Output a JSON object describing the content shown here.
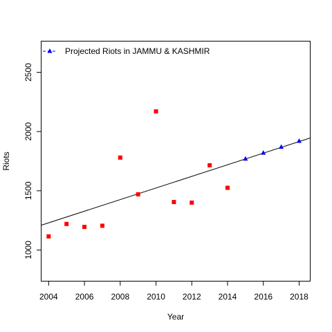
{
  "chart_data": {
    "type": "scatter",
    "xlabel": "Year",
    "ylabel": "Riots",
    "xlim": [
      2003.6,
      2018.6
    ],
    "ylim": [
      740,
      2760
    ],
    "x_ticks": [
      2004,
      2006,
      2008,
      2010,
      2012,
      2014,
      2016,
      2018
    ],
    "y_ticks": [
      1000,
      1500,
      2000,
      2500
    ],
    "grid": false,
    "legend": {
      "position": "top-left",
      "entries": [
        {
          "label": "Projected  Riots  in  JAMMU & KASHMIR",
          "marker": "triangle",
          "line": "dashed"
        }
      ]
    },
    "series": [
      {
        "role": "observed",
        "marker": "square",
        "color": "#ff0000",
        "points": [
          {
            "x": 2004,
            "y": 1115
          },
          {
            "x": 2005,
            "y": 1220
          },
          {
            "x": 2006,
            "y": 1195
          },
          {
            "x": 2007,
            "y": 1205
          },
          {
            "x": 2008,
            "y": 1780
          },
          {
            "x": 2009,
            "y": 1470
          },
          {
            "x": 2010,
            "y": 2170
          },
          {
            "x": 2011,
            "y": 1405
          },
          {
            "x": 2012,
            "y": 1400
          },
          {
            "x": 2013,
            "y": 1715
          },
          {
            "x": 2014,
            "y": 1525
          }
        ]
      },
      {
        "role": "projected",
        "name": "Projected  Riots  in  JAMMU & KASHMIR",
        "marker": "triangle",
        "color": "#0000ff",
        "points": [
          {
            "x": 2015,
            "y": 1772
          },
          {
            "x": 2016,
            "y": 1822
          },
          {
            "x": 2017,
            "y": 1872
          },
          {
            "x": 2018,
            "y": 1922
          }
        ]
      }
    ],
    "trend_line": {
      "color": "#000000",
      "points": [
        {
          "x": 2003.6,
          "y": 1210
        },
        {
          "x": 2018.6,
          "y": 1945
        }
      ]
    }
  }
}
